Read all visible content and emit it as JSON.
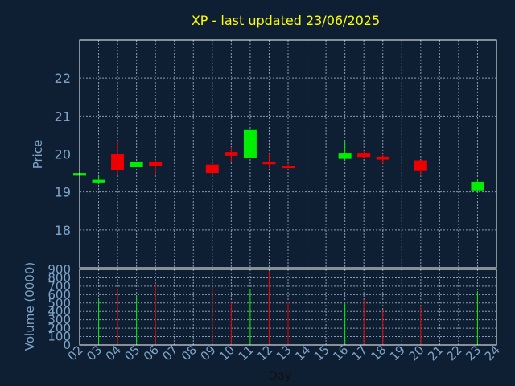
{
  "chart_data": {
    "type": "candlestick",
    "title": "XP - last updated 23/06/2025",
    "xlabel": "Day",
    "price_axis": {
      "label": "Price",
      "ylim": [
        17.0,
        23.0
      ],
      "ticks": [
        18,
        19,
        20,
        21,
        22
      ],
      "grid": true
    },
    "volume_axis": {
      "label": "Volume (0000)",
      "ylim": [
        0,
        900
      ],
      "ticks": [
        0,
        100,
        200,
        300,
        400,
        500,
        600,
        700,
        800,
        900
      ],
      "grid": true
    },
    "x_ticks": [
      "02",
      "03",
      "04",
      "05",
      "06",
      "07",
      "08",
      "09",
      "10",
      "11",
      "12",
      "13",
      "14",
      "15",
      "16",
      "17",
      "18",
      "19",
      "20",
      "21",
      "22",
      "23",
      "24"
    ],
    "xlim": [
      2,
      24
    ],
    "colors": {
      "up": "#00ee00",
      "down": "#ee0000",
      "text": "#7ea4c8",
      "title": "#ffff00",
      "axis": "#ffffff",
      "grid": "#8a9ab0",
      "background": "#0f1f33"
    },
    "candles": [
      {
        "day": "02",
        "open": 19.43,
        "high": 19.5,
        "low": 19.43,
        "close": 19.5,
        "volume": 0
      },
      {
        "day": "03",
        "open": 19.25,
        "high": 19.42,
        "low": 19.2,
        "close": 19.32,
        "volume": 560
      },
      {
        "day": "04",
        "open": 20.0,
        "high": 20.35,
        "low": 19.45,
        "close": 19.57,
        "volume": 670
      },
      {
        "day": "05",
        "open": 19.65,
        "high": 19.8,
        "low": 19.65,
        "close": 19.8,
        "volume": 580
      },
      {
        "day": "06",
        "open": 19.8,
        "high": 19.85,
        "low": 19.45,
        "close": 19.68,
        "volume": 730
      },
      {
        "day": "09",
        "open": 19.72,
        "high": 19.72,
        "low": 19.47,
        "close": 19.5,
        "volume": 690
      },
      {
        "day": "10",
        "open": 20.05,
        "high": 20.18,
        "low": 19.8,
        "close": 19.95,
        "volume": 500
      },
      {
        "day": "11",
        "open": 19.9,
        "high": 20.63,
        "low": 19.9,
        "close": 20.63,
        "volume": 660
      },
      {
        "day": "12",
        "open": 19.78,
        "high": 20.02,
        "low": 19.62,
        "close": 19.73,
        "volume": 880
      },
      {
        "day": "13",
        "open": 19.67,
        "high": 19.75,
        "low": 19.62,
        "close": 19.63,
        "volume": 510
      },
      {
        "day": "16",
        "open": 19.87,
        "high": 20.33,
        "low": 19.85,
        "close": 20.03,
        "volume": 500
      },
      {
        "day": "17",
        "open": 20.03,
        "high": 20.07,
        "low": 19.9,
        "close": 19.92,
        "volume": 540
      },
      {
        "day": "18",
        "open": 19.93,
        "high": 19.98,
        "low": 19.73,
        "close": 19.85,
        "volume": 420
      },
      {
        "day": "20",
        "open": 19.83,
        "high": 19.83,
        "low": 19.43,
        "close": 19.55,
        "volume": 470
      },
      {
        "day": "23",
        "open": 19.04,
        "high": 19.35,
        "low": 19.04,
        "close": 19.27,
        "volume": 640
      }
    ]
  }
}
